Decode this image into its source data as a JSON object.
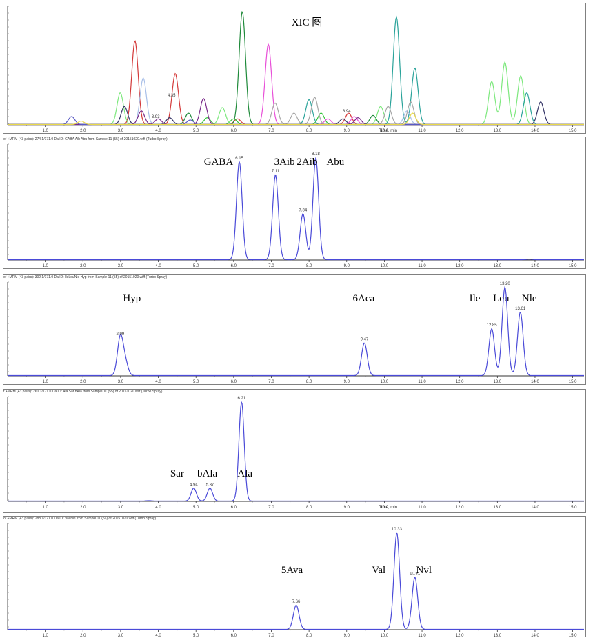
{
  "panels": [
    {
      "header": "",
      "x_axis_label": "Time, min",
      "title": "XIC 图",
      "peak_labels": [
        {
          "t": 3.93,
          "text": "3.93"
        },
        {
          "t": 4.35,
          "text": "4.35"
        },
        {
          "t": 9.0,
          "text": "8.94"
        }
      ],
      "compound_labels": []
    },
    {
      "header": "of +MRM (43 pairs): 274.1/171.0 Da ID: GABA Aib Abu from Sample 11 (55) of 20151020.wiff (Turbo Spray)",
      "x_axis_label": "",
      "title": "",
      "peak_labels": [
        {
          "t": 6.15,
          "text": "6.15"
        },
        {
          "t": 7.11,
          "text": "7.11"
        },
        {
          "t": 7.84,
          "text": "7.84"
        },
        {
          "t": 8.18,
          "text": "8.18"
        }
      ],
      "compound_labels": [
        {
          "t": 5.6,
          "text": "GABA"
        },
        {
          "t": 7.35,
          "text": "3Aib"
        },
        {
          "t": 7.95,
          "text": "2Aib"
        },
        {
          "t": 8.7,
          "text": "Abu"
        }
      ]
    },
    {
      "header": "of +MRM (43 pairs): 302.1/171.0 Da ID: IleLeuNle Hyp from Sample 11 (55) of 20151020.wiff (Turbo Spray)",
      "x_axis_label": "",
      "title": "",
      "peak_labels": [
        {
          "t": 2.99,
          "text": "2.99"
        },
        {
          "t": 9.47,
          "text": "9.47"
        },
        {
          "t": 12.85,
          "text": "12.85"
        },
        {
          "t": 13.2,
          "text": "13.20"
        },
        {
          "t": 13.61,
          "text": "13.61"
        }
      ],
      "compound_labels": [
        {
          "t": 3.3,
          "text": "Hyp"
        },
        {
          "t": 9.45,
          "text": "6Aca"
        },
        {
          "t": 12.4,
          "text": "Ile"
        },
        {
          "t": 13.1,
          "text": "Leu"
        },
        {
          "t": 13.85,
          "text": "Nle"
        }
      ]
    },
    {
      "header": "f +MRM (43 pairs): 260.1/171.0 Da ID: Ala Sar bAla from Sample 11 (55) of 20151020.wiff (Turbo Spray)",
      "x_axis_label": "Time, min",
      "title": "",
      "peak_labels": [
        {
          "t": 4.94,
          "text": "4.94"
        },
        {
          "t": 5.37,
          "text": "5.37"
        },
        {
          "t": 6.21,
          "text": "6.21"
        }
      ],
      "compound_labels": [
        {
          "t": 4.5,
          "text": "Sar"
        },
        {
          "t": 5.3,
          "text": "bAla"
        },
        {
          "t": 6.3,
          "text": "Ala"
        }
      ]
    },
    {
      "header": "of +MRM (43 pairs): 288.1/171.0 Da ID: Val Nvl from Sample 11 (55) of 20151020.wiff (Turbo Spray)",
      "x_axis_label": "",
      "title": "",
      "peak_labels": [
        {
          "t": 7.66,
          "text": "7.66"
        },
        {
          "t": 10.33,
          "text": "10.33"
        },
        {
          "t": 10.81,
          "text": "10.81"
        }
      ],
      "compound_labels": [
        {
          "t": 7.55,
          "text": "5Ava"
        },
        {
          "t": 9.85,
          "text": "Val"
        },
        {
          "t": 11.05,
          "text": "Nvl"
        }
      ]
    }
  ],
  "chart_data": [
    {
      "type": "line",
      "title": "XIC 图",
      "xlabel": "Time, min",
      "xlim": [
        0,
        15.3
      ],
      "xticks": [
        "1.0",
        "2.0",
        "3.0",
        "4.0",
        "5.0",
        "6.0",
        "7.0",
        "8.0",
        "9.0",
        "10.0",
        "11.0",
        "12.0",
        "13.0",
        "14.0",
        "15.0"
      ],
      "series": [
        {
          "color": "#d43a3a",
          "peaks": [
            [
              3.38,
              0.74
            ],
            [
              4.45,
              0.45
            ],
            [
              9.05,
              0.1
            ],
            [
              6.1,
              0.05
            ]
          ]
        },
        {
          "color": "#1f8a3a",
          "peaks": [
            [
              6.23,
              1.0
            ],
            [
              4.8,
              0.1
            ],
            [
              9.7,
              0.08
            ]
          ]
        },
        {
          "color": "#33c43a",
          "peaks": [
            [
              6.0,
              0.05
            ],
            [
              8.32,
              0.1
            ],
            [
              5.3,
              0.06
            ]
          ]
        },
        {
          "color": "#7de87d",
          "peaks": [
            [
              2.99,
              0.28
            ],
            [
              5.7,
              0.15
            ],
            [
              12.85,
              0.38
            ],
            [
              13.2,
              0.55
            ],
            [
              13.62,
              0.43
            ],
            [
              9.9,
              0.16
            ]
          ]
        },
        {
          "color": "#e84fd8",
          "peaks": [
            [
              6.92,
              0.71
            ],
            [
              8.5,
              0.05
            ],
            [
              9.2,
              0.07
            ]
          ]
        },
        {
          "color": "#2aa39a",
          "peaks": [
            [
              10.32,
              0.95
            ],
            [
              10.81,
              0.5
            ],
            [
              8.0,
              0.22
            ],
            [
              13.78,
              0.28
            ]
          ]
        },
        {
          "color": "#a8bfe8",
          "peaks": [
            [
              3.6,
              0.41
            ],
            [
              10.6,
              0.12
            ]
          ]
        },
        {
          "color": "#a6a6a6",
          "peaks": [
            [
              7.1,
              0.19
            ],
            [
              8.15,
              0.24
            ],
            [
              10.1,
              0.16
            ],
            [
              10.7,
              0.2
            ],
            [
              7.6,
              0.1
            ]
          ]
        },
        {
          "color": "#333366",
          "peaks": [
            [
              3.1,
              0.16
            ],
            [
              4.3,
              0.06
            ],
            [
              14.15,
              0.2
            ],
            [
              8.9,
              0.05
            ]
          ]
        },
        {
          "color": "#7a2b8a",
          "peaks": [
            [
              5.2,
              0.23
            ],
            [
              3.55,
              0.12
            ],
            [
              4.0,
              0.05
            ],
            [
              9.3,
              0.06
            ]
          ]
        },
        {
          "color": "#5a5ac4",
          "peaks": [
            [
              1.7,
              0.07
            ],
            [
              4.85,
              0.04
            ]
          ]
        },
        {
          "color": "#e8d84a",
          "peaks": [
            [
              1.95,
              0.03
            ],
            [
              10.75,
              0.1
            ]
          ]
        }
      ]
    },
    {
      "type": "line",
      "title": "",
      "xlim": [
        0,
        15.3
      ],
      "xticks": [
        "1.0",
        "2.0",
        "3.0",
        "4.0",
        "5.0",
        "6.0",
        "7.0",
        "8.0",
        "9.0",
        "10.0",
        "11.0",
        "12.0",
        "13.0",
        "14.0",
        "15.0"
      ],
      "series": [
        {
          "color": "#4a4ad8",
          "peaks": [
            [
              6.15,
              0.96
            ],
            [
              7.11,
              0.83
            ],
            [
              7.84,
              0.45
            ],
            [
              8.18,
              1.0
            ],
            [
              13.85,
              0.005
            ]
          ]
        }
      ]
    },
    {
      "type": "line",
      "title": "",
      "xlim": [
        0,
        15.3
      ],
      "xticks": [
        "1.0",
        "2.0",
        "3.0",
        "4.0",
        "5.0",
        "6.0",
        "7.0",
        "8.0",
        "9.0",
        "10.0",
        "11.0",
        "12.0",
        "13.0",
        "14.0",
        "15.0"
      ],
      "series": [
        {
          "color": "#4a4ad8",
          "peaks": [
            [
              2.99,
              0.43
            ],
            [
              3.12,
              0.15
            ],
            [
              9.47,
              0.37
            ],
            [
              12.85,
              0.53
            ],
            [
              13.2,
              1.0
            ],
            [
              13.61,
              0.72
            ]
          ]
        }
      ]
    },
    {
      "type": "line",
      "title": "",
      "xlabel": "Time, min",
      "xlim": [
        0,
        15.3
      ],
      "xticks": [
        "1.0",
        "2.0",
        "3.0",
        "4.0",
        "5.0",
        "6.0",
        "7.0",
        "8.0",
        "9.0",
        "10.0",
        "11.0",
        "12.0",
        "13.0",
        "14.0",
        "15.0"
      ],
      "series": [
        {
          "color": "#4a4ad8",
          "peaks": [
            [
              4.94,
              0.13
            ],
            [
              5.37,
              0.13
            ],
            [
              6.21,
              1.0
            ],
            [
              3.75,
              0.004
            ]
          ]
        }
      ]
    },
    {
      "type": "line",
      "title": "",
      "xlim": [
        0,
        15.3
      ],
      "xticks": [
        "1.0",
        "2.0",
        "3.0",
        "4.0",
        "5.0",
        "6.0",
        "7.0",
        "8.0",
        "9.0",
        "10.0",
        "11.0",
        "12.0",
        "13.0",
        "14.0",
        "15.0"
      ],
      "series": [
        {
          "color": "#4a4ad8",
          "peaks": [
            [
              7.66,
              0.25
            ],
            [
              10.33,
              1.0
            ],
            [
              10.81,
              0.54
            ]
          ]
        }
      ]
    }
  ]
}
